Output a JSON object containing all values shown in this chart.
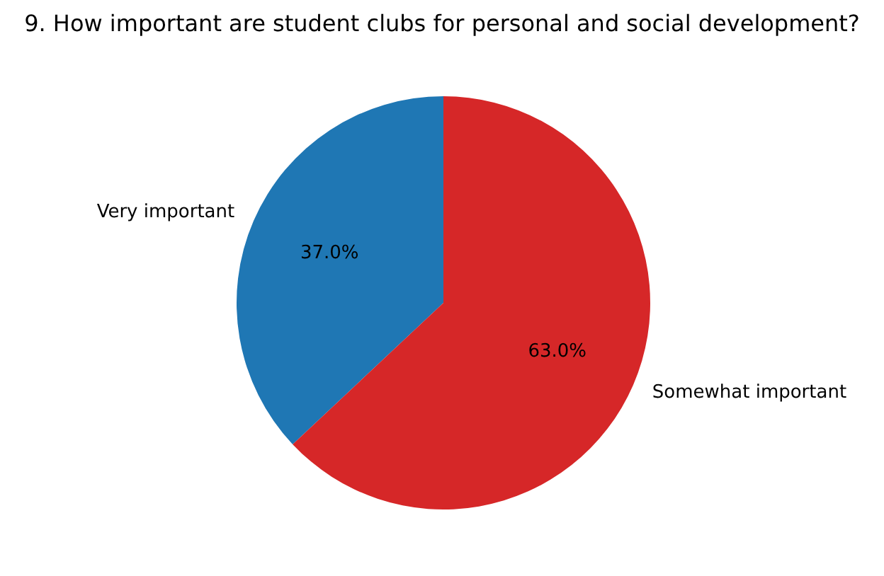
{
  "chart_data": {
    "type": "pie",
    "title": "9. How important are student clubs for personal and social development?",
    "categories": [
      "Very important",
      "Somewhat important"
    ],
    "values": [
      37,
      63
    ],
    "colors": [
      "#1f77b4",
      "#d62728"
    ],
    "value_labels": [
      "37.0%",
      "63.0%"
    ],
    "legend": false
  }
}
